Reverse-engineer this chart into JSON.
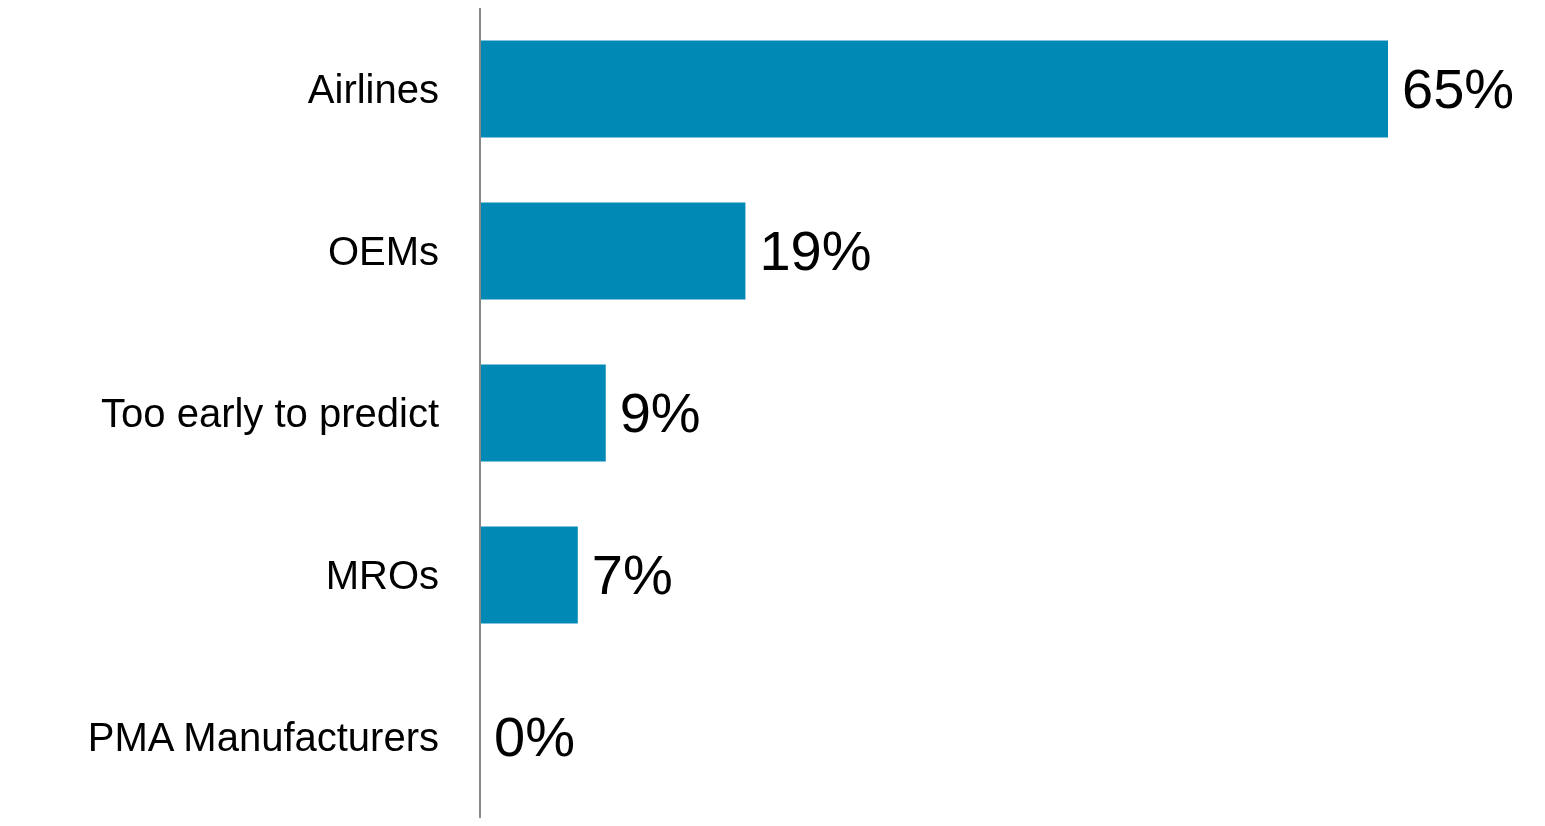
{
  "chart_data": {
    "type": "bar",
    "orientation": "horizontal",
    "categories": [
      "Airlines",
      "OEMs",
      "Too early to predict",
      "MROs",
      "PMA Manufacturers"
    ],
    "values": [
      65,
      19,
      9,
      7,
      0
    ],
    "value_labels": [
      "65%",
      "19%",
      "9%",
      "7%",
      "0%"
    ],
    "color": "#0089b5"
  }
}
